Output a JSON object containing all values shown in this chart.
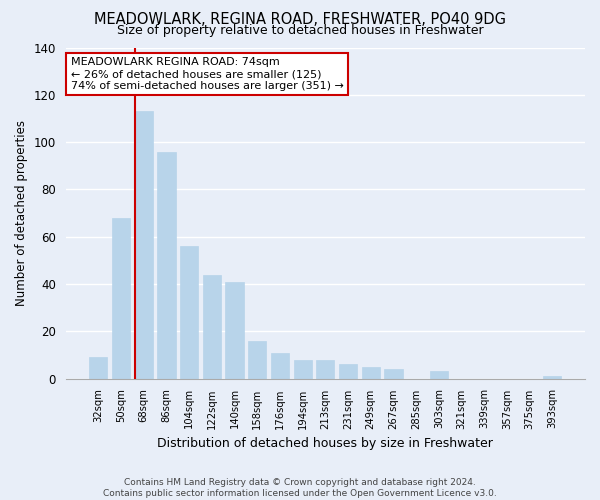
{
  "title": "MEADOWLARK, REGINA ROAD, FRESHWATER, PO40 9DG",
  "subtitle": "Size of property relative to detached houses in Freshwater",
  "xlabel": "Distribution of detached houses by size in Freshwater",
  "ylabel": "Number of detached properties",
  "bar_labels": [
    "32sqm",
    "50sqm",
    "68sqm",
    "86sqm",
    "104sqm",
    "122sqm",
    "140sqm",
    "158sqm",
    "176sqm",
    "194sqm",
    "213sqm",
    "231sqm",
    "249sqm",
    "267sqm",
    "285sqm",
    "303sqm",
    "321sqm",
    "339sqm",
    "357sqm",
    "375sqm",
    "393sqm"
  ],
  "bar_values": [
    9,
    68,
    113,
    96,
    56,
    44,
    41,
    16,
    11,
    8,
    8,
    6,
    5,
    4,
    0,
    3,
    0,
    0,
    0,
    0,
    1
  ],
  "bar_color": "#b8d4ea",
  "vline_x": 2,
  "vline_color": "#cc0000",
  "ylim": [
    0,
    140
  ],
  "yticks": [
    0,
    20,
    40,
    60,
    80,
    100,
    120,
    140
  ],
  "annotation_title": "MEADOWLARK REGINA ROAD: 74sqm",
  "annotation_line1": "← 26% of detached houses are smaller (125)",
  "annotation_line2": "74% of semi-detached houses are larger (351) →",
  "annotation_box_color": "#ffffff",
  "annotation_box_edge": "#cc0000",
  "footer_line1": "Contains HM Land Registry data © Crown copyright and database right 2024.",
  "footer_line2": "Contains public sector information licensed under the Open Government Licence v3.0.",
  "background_color": "#e8eef8",
  "grid_color": "#ffffff"
}
